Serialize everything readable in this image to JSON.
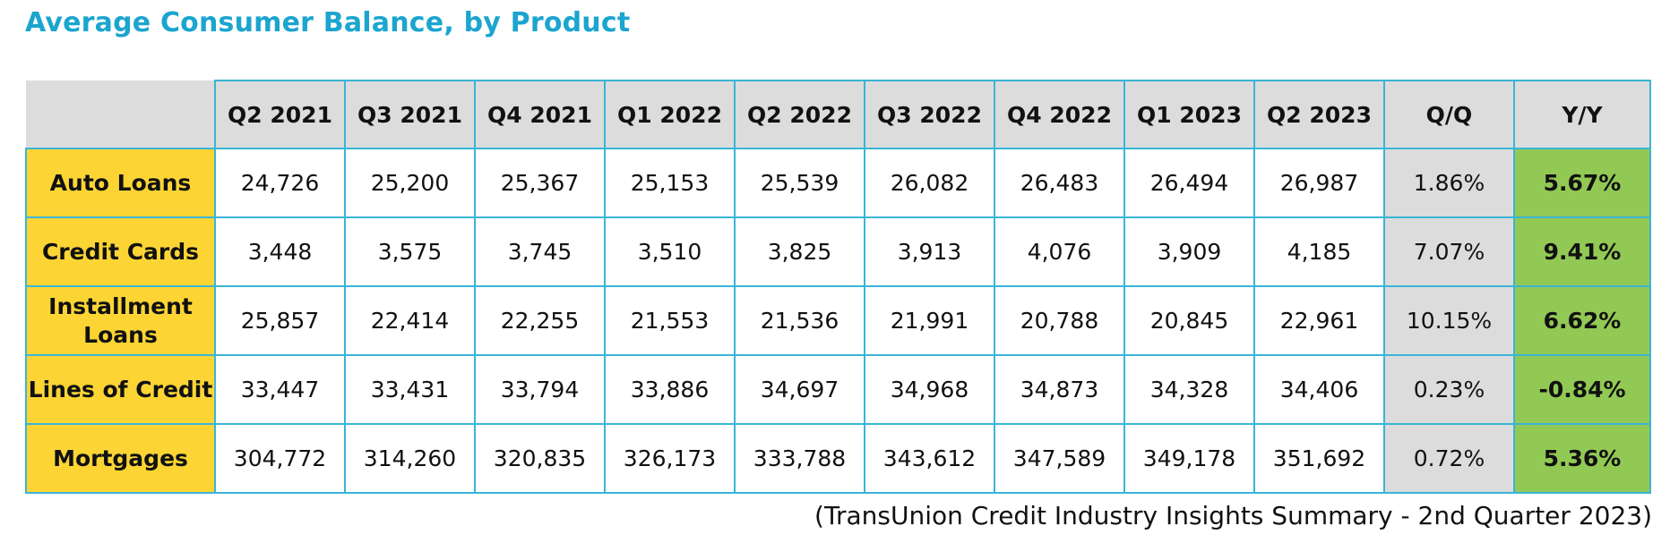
{
  "title": "Average Consumer Balance, by Product",
  "source": "(TransUnion Credit Industry Insights Summary - 2nd Quarter 2023)",
  "colors": {
    "title": "#1ba5cf",
    "border": "#3ab5d6",
    "row_label_bg": "#fcd535",
    "header_bg": "#dcdcdc",
    "qq_bg": "#dcdcdc",
    "yy_bg": "#92c955"
  },
  "chart_data": {
    "type": "table",
    "title": "Average Consumer Balance, by Product",
    "columns": [
      "Q2 2021",
      "Q3 2021",
      "Q4 2021",
      "Q1 2022",
      "Q2 2022",
      "Q3 2022",
      "Q4 2022",
      "Q1 2023",
      "Q2 2023",
      "Q/Q",
      "Y/Y"
    ],
    "rows": [
      {
        "label": "Auto Loans",
        "values": [
          "24,726",
          "25,200",
          "25,367",
          "25,153",
          "25,539",
          "26,082",
          "26,483",
          "26,494",
          "26,987"
        ],
        "qq": "1.86%",
        "yy": "5.67%"
      },
      {
        "label": "Credit Cards",
        "values": [
          "3,448",
          "3,575",
          "3,745",
          "3,510",
          "3,825",
          "3,913",
          "4,076",
          "3,909",
          "4,185"
        ],
        "qq": "7.07%",
        "yy": "9.41%"
      },
      {
        "label": "Installment Loans",
        "values": [
          "25,857",
          "22,414",
          "22,255",
          "21,553",
          "21,536",
          "21,991",
          "20,788",
          "20,845",
          "22,961"
        ],
        "qq": "10.15%",
        "yy": "6.62%"
      },
      {
        "label": "Lines of Credit",
        "values": [
          "33,447",
          "33,431",
          "33,794",
          "33,886",
          "34,697",
          "34,968",
          "34,873",
          "34,328",
          "34,406"
        ],
        "qq": "0.23%",
        "yy": "-0.84%"
      },
      {
        "label": "Mortgages",
        "values": [
          "304,772",
          "314,260",
          "320,835",
          "326,173",
          "333,788",
          "343,612",
          "347,589",
          "349,178",
          "351,692"
        ],
        "qq": "0.72%",
        "yy": "5.36%"
      }
    ]
  }
}
